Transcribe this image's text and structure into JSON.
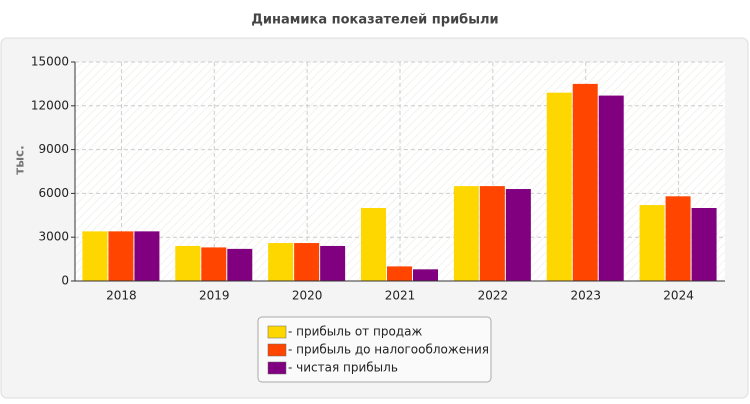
{
  "chart_data": {
    "type": "bar",
    "title": "Динамика показателей прибыли",
    "y_label": "тыс.",
    "categories": [
      "2018",
      "2019",
      "2020",
      "2021",
      "2022",
      "2023",
      "2024"
    ],
    "series": [
      {
        "name": "- прибыль от продаж",
        "color": "#ffd700",
        "values": [
          3400,
          2400,
          2600,
          5000,
          6500,
          12900,
          5200
        ]
      },
      {
        "name": "- прибыль до налогообложения",
        "color": "#ff4500",
        "values": [
          3400,
          2300,
          2600,
          1000,
          6500,
          13500,
          5800
        ]
      },
      {
        "name": "- чистая прибыль",
        "color": "#800080",
        "values": [
          3400,
          2200,
          2400,
          800,
          6300,
          12700,
          5000
        ]
      }
    ],
    "ylim": [
      0,
      15000
    ],
    "yticks": [
      0,
      3000,
      6000,
      9000,
      12000,
      15000
    ],
    "grid": true
  }
}
